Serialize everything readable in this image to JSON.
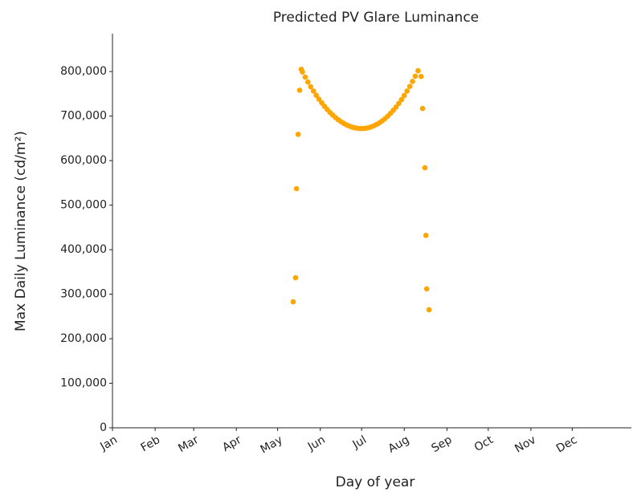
{
  "chart_data": {
    "type": "scatter",
    "title": "Predicted PV Glare Luminance",
    "x_label": "Day of year",
    "y_label": "Max Daily Luminance (cd/m²)",
    "color": "#ffa500",
    "x": [
      132.3,
      134,
      134.7,
      135.9,
      137,
      138.2,
      139,
      141,
      143,
      145,
      147,
      149,
      151,
      153,
      155,
      157,
      159,
      161,
      163,
      165,
      167,
      169,
      171,
      173,
      175,
      177,
      179,
      181,
      183,
      185,
      187,
      189,
      191,
      193,
      195,
      197,
      199,
      201,
      203,
      205,
      207,
      209,
      211,
      213,
      215,
      217,
      219,
      221,
      223,
      225.2,
      226.3,
      228,
      228.7,
      229.3,
      231
    ],
    "values": [
      283000,
      337000,
      537000,
      659000,
      758000,
      805000,
      799000,
      787500,
      776500,
      766000,
      756200,
      746800,
      738000,
      729800,
      722100,
      714900,
      708300,
      702300,
      696800,
      691900,
      687500,
      683600,
      680300,
      677600,
      675400,
      673700,
      672600,
      672100,
      672100,
      672700,
      673900,
      675800,
      678300,
      681400,
      685100,
      689400,
      694300,
      699900,
      706100,
      712900,
      720300,
      728400,
      737000,
      746300,
      756200,
      766700,
      777800,
      789600,
      801900,
      789000,
      717000,
      584000,
      432000,
      312000,
      265000
    ],
    "xlim": [
      1,
      378
    ],
    "xticks": [
      {
        "value": 1,
        "label": "Jan"
      },
      {
        "value": 32,
        "label": "Feb"
      },
      {
        "value": 60,
        "label": "Mar"
      },
      {
        "value": 91,
        "label": "Apr"
      },
      {
        "value": 121,
        "label": "May"
      },
      {
        "value": 152,
        "label": "Jun"
      },
      {
        "value": 182,
        "label": "Jul"
      },
      {
        "value": 213,
        "label": "Aug"
      },
      {
        "value": 244,
        "label": "Sep"
      },
      {
        "value": 274,
        "label": "Oct"
      },
      {
        "value": 305,
        "label": "Nov"
      },
      {
        "value": 335,
        "label": "Dec"
      }
    ],
    "ylim": [
      0,
      885000
    ],
    "yticks": [
      0,
      {
        "value": 100000,
        "label": "100,000"
      },
      {
        "value": 200000,
        "label": "200,000"
      },
      {
        "value": 300000,
        "label": "300,000"
      },
      {
        "value": 400000,
        "label": "400,000"
      },
      {
        "value": 500000,
        "label": "500,000"
      },
      {
        "value": 600000,
        "label": "600,000"
      },
      {
        "value": 700000,
        "label": "700,000"
      },
      {
        "value": 800000,
        "label": "800,000"
      }
    ],
    "grid": false
  }
}
